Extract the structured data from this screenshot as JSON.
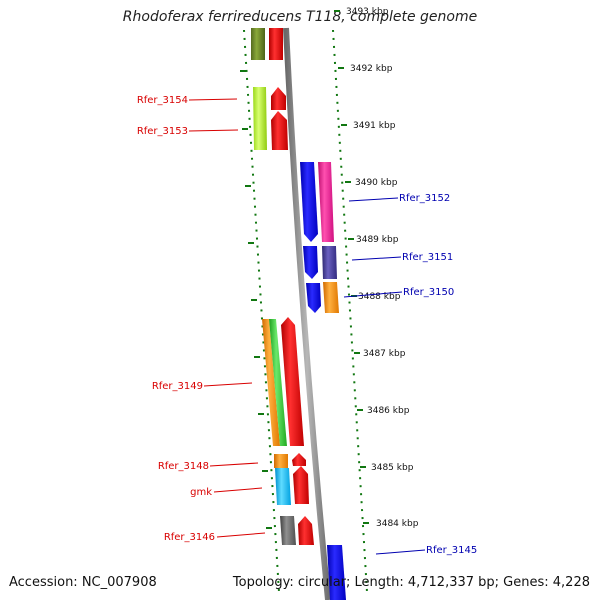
{
  "title": "Rhodoferax ferrireducens T118, complete genome",
  "footer": {
    "accession": "Accession: NC_007908",
    "topology": "Topology: circular; Length: 4,712,337 bp; Genes: 4,228"
  },
  "scale": {
    "ticks": [
      {
        "label": "3493 kbp"
      },
      {
        "label": "3492 kbp"
      },
      {
        "label": "3491 kbp"
      },
      {
        "label": "3490 kbp"
      },
      {
        "label": "3489 kbp"
      },
      {
        "label": "3488 kbp"
      },
      {
        "label": "3487 kbp"
      },
      {
        "label": "3486 kbp"
      },
      {
        "label": "3485 kbp"
      },
      {
        "label": "3484 kbp"
      }
    ]
  },
  "gene_labels": {
    "left": [
      "Rfer_3154",
      "Rfer_3153",
      "Rfer_3149",
      "Rfer_3148",
      "gmk",
      "Rfer_3146"
    ],
    "right": [
      "Rfer_3152",
      "Rfer_3151",
      "Rfer_3150",
      "Rfer_3145"
    ]
  },
  "colors": {
    "forward_strand_red": "#ff0000",
    "backbone": "#888888",
    "tick_green": "#117711",
    "label_left": "#d80000",
    "label_right": "#0000b0",
    "gene_olive": "#6b8e23",
    "gene_lime": "#adff2f",
    "gene_blue": "#0000ff",
    "gene_magenta": "#ff1493",
    "gene_slate": "#483d8b",
    "gene_orange": "#ff8c00",
    "gene_green": "#32cd32",
    "gene_cyan": "#00bfff",
    "gene_gray": "#696969"
  }
}
